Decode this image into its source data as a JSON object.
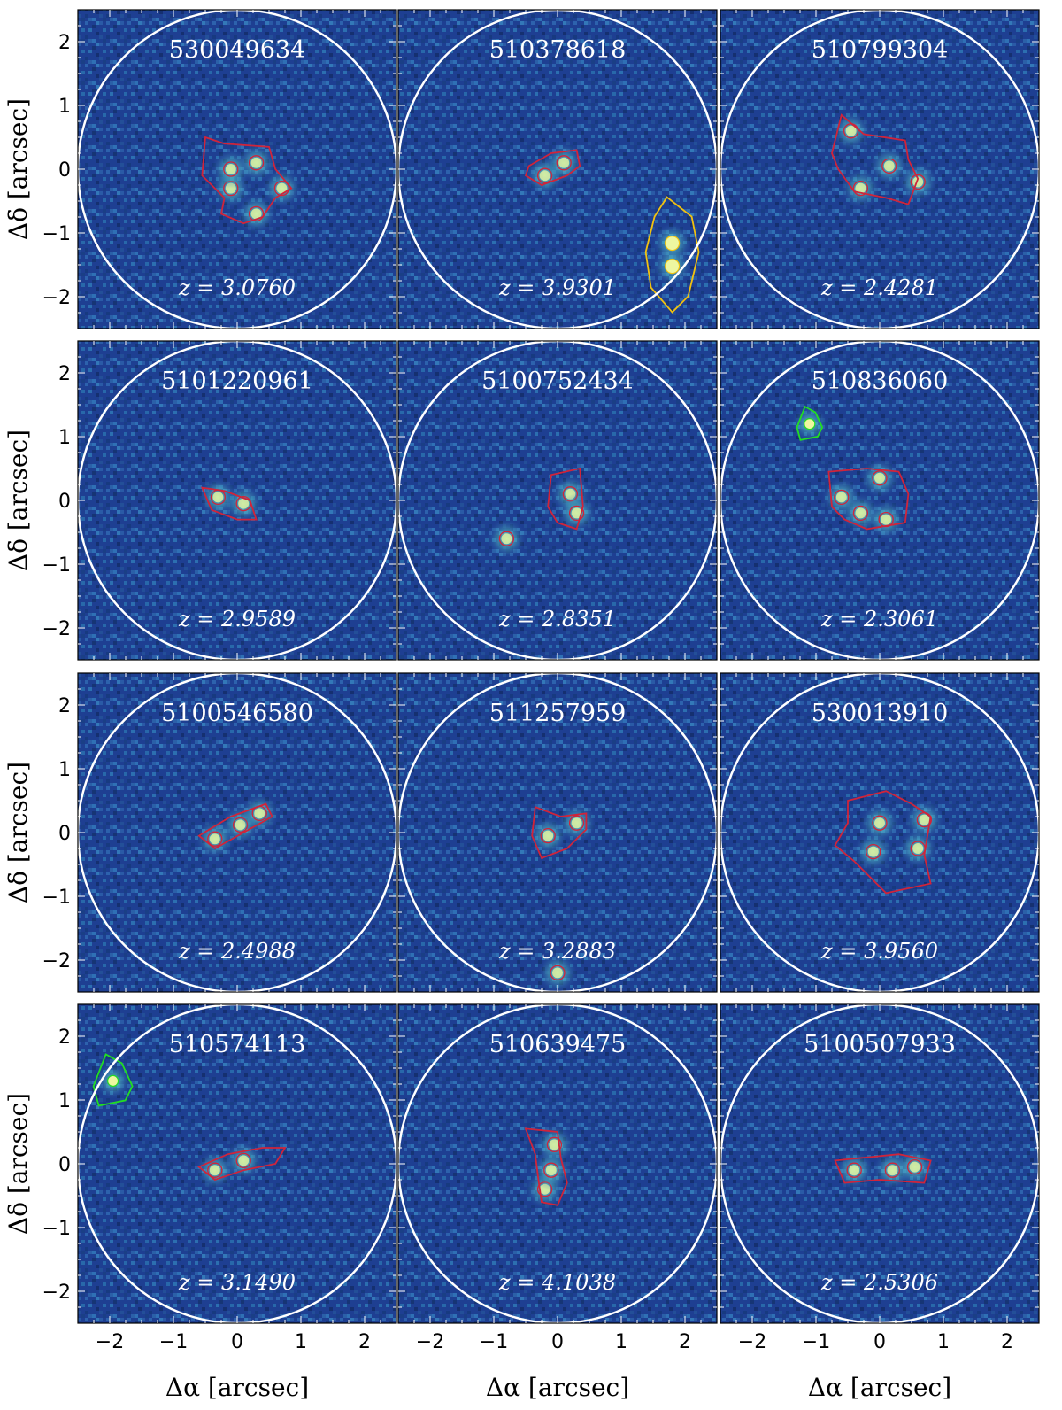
{
  "figure": {
    "x_axis_label": "Δα [arcsec]",
    "y_axis_label": "Δδ [arcsec]",
    "x_ticks": [
      "−2",
      "−1",
      "0",
      "1",
      "2"
    ],
    "y_ticks": [
      "2",
      "1",
      "0",
      "−1",
      "−2"
    ],
    "colors": {
      "background": "#1e3f92",
      "aperture": "#ffffff",
      "target_contour": "#d0243a",
      "neighbor_green": "#22dd22",
      "neighbor_yellow": "#f2c20f",
      "label_text": "#ffffff"
    }
  },
  "panels": [
    {
      "id": "530049634",
      "z": "z = 3.0760",
      "neighbor": "none"
    },
    {
      "id": "510378618",
      "z": "z = 3.9301",
      "neighbor": "yellow"
    },
    {
      "id": "510799304",
      "z": "z = 2.4281",
      "neighbor": "none"
    },
    {
      "id": "5101220961",
      "z": "z = 2.9589",
      "neighbor": "none"
    },
    {
      "id": "5100752434",
      "z": "z = 2.8351",
      "neighbor": "none"
    },
    {
      "id": "510836060",
      "z": "z = 2.3061",
      "neighbor": "green"
    },
    {
      "id": "5100546580",
      "z": "z = 2.4988",
      "neighbor": "none"
    },
    {
      "id": "511257959",
      "z": "z = 3.2883",
      "neighbor": "none"
    },
    {
      "id": "530013910",
      "z": "z = 3.9560",
      "neighbor": "none"
    },
    {
      "id": "510574113",
      "z": "z = 3.1490",
      "neighbor": "green"
    },
    {
      "id": "510639475",
      "z": "z = 4.1038",
      "neighbor": "none"
    },
    {
      "id": "5100507933",
      "z": "z = 2.5306",
      "neighbor": "none"
    }
  ]
}
